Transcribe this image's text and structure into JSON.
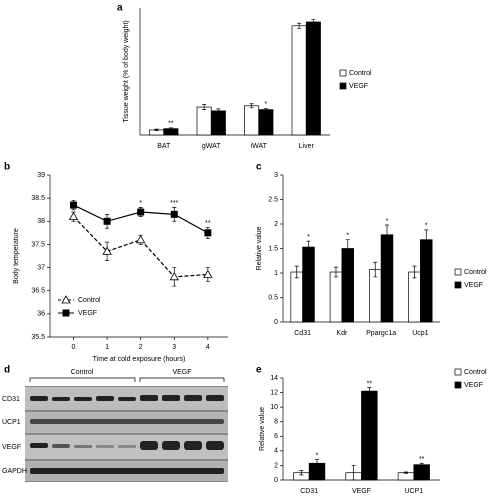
{
  "chart_data": [
    {
      "panel": "a",
      "type": "bar",
      "ylabel": "Tissue weight (% of body weight)",
      "categories": [
        "BAT",
        "gWAT",
        "iWAT",
        "Liver"
      ],
      "ylim": [
        0,
        5
      ],
      "series": [
        {
          "name": "Control",
          "color": "#ffffff",
          "values": [
            0.2,
            1.1,
            1.15,
            4.3
          ],
          "errors": [
            0.03,
            0.1,
            0.08,
            0.1
          ]
        },
        {
          "name": "VEGF",
          "color": "#000000",
          "values": [
            0.25,
            0.95,
            1.0,
            4.45
          ],
          "errors": [
            0.03,
            0.08,
            0.05,
            0.1
          ],
          "sig": [
            "**",
            null,
            "*",
            null
          ]
        }
      ]
    },
    {
      "panel": "b",
      "type": "line",
      "ylabel": "Body temperature",
      "xlabel": "Time at cold exposure (hours)",
      "x": [
        0,
        1,
        2,
        3,
        4
      ],
      "xlim": [
        -0.7,
        4.6
      ],
      "xticks": [
        0,
        1,
        2,
        3,
        4
      ],
      "ylim": [
        35.5,
        39
      ],
      "yticks": [
        35.5,
        36,
        36.5,
        37,
        37.5,
        38,
        38.5,
        39
      ],
      "series": [
        {
          "name": "Control",
          "color": "#000000",
          "marker": "triangle",
          "dashed": true,
          "values": [
            38.1,
            37.35,
            37.6,
            36.8,
            36.85
          ],
          "errors": [
            0.1,
            0.2,
            0.1,
            0.2,
            0.15
          ]
        },
        {
          "name": "VEGF",
          "color": "#000000",
          "marker": "square",
          "dashed": false,
          "values": [
            38.35,
            38.0,
            38.2,
            38.15,
            37.75
          ],
          "errors": [
            0.1,
            0.15,
            0.1,
            0.15,
            0.12
          ],
          "sig": [
            null,
            null,
            "*",
            "***",
            "**"
          ]
        }
      ]
    },
    {
      "panel": "c",
      "type": "bar",
      "ylabel": "Relative value",
      "categories": [
        "Cd31",
        "Kdr",
        "Ppargc1a",
        "Ucp1"
      ],
      "ylim": [
        0,
        3
      ],
      "yticks": [
        0,
        0.5,
        1,
        1.5,
        2,
        2.5,
        3
      ],
      "series": [
        {
          "name": "Control",
          "color": "#ffffff",
          "values": [
            1.02,
            1.02,
            1.07,
            1.02
          ],
          "errors": [
            0.12,
            0.1,
            0.15,
            0.12
          ]
        },
        {
          "name": "VEGF",
          "color": "#000000",
          "values": [
            1.53,
            1.5,
            1.78,
            1.68
          ],
          "errors": [
            0.12,
            0.18,
            0.2,
            0.2
          ],
          "sig": [
            "*",
            "*",
            "*",
            "*"
          ]
        }
      ]
    },
    {
      "panel": "e",
      "type": "bar",
      "ylabel": "Relative value",
      "categories": [
        "CD31",
        "VEGF",
        "UCP1"
      ],
      "ylim": [
        0,
        14
      ],
      "yticks": [
        0,
        2,
        4,
        6,
        8,
        10,
        12,
        14
      ],
      "series": [
        {
          "name": "Control",
          "color": "#ffffff",
          "values": [
            1.0,
            1.0,
            1.0
          ],
          "errors": [
            0.3,
            1.0,
            0.1
          ]
        },
        {
          "name": "VEGF",
          "color": "#000000",
          "values": [
            2.3,
            12.2,
            2.1
          ],
          "errors": [
            0.5,
            0.5,
            0.2
          ],
          "sig": [
            "*",
            "**",
            "**"
          ]
        }
      ]
    }
  ],
  "blot": {
    "panel": "d",
    "groups": [
      "Control",
      "VEGF"
    ],
    "rows": [
      "CD31",
      "UCP1",
      "VEGF",
      "GAPDH"
    ]
  }
}
